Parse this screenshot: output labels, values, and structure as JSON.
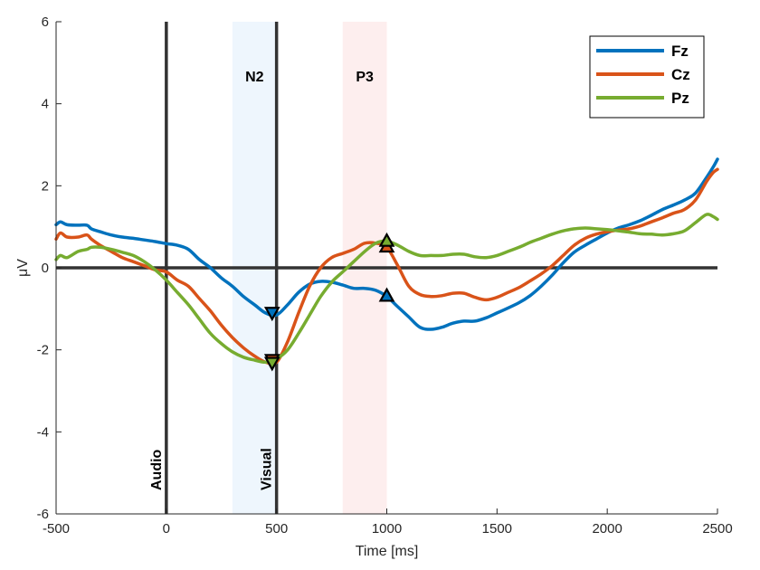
{
  "chart_data": {
    "type": "line",
    "xlabel": "Time [ms]",
    "ylabel": "μV",
    "xlim": [
      -500,
      2500
    ],
    "ylim": [
      -6,
      6
    ],
    "xticks": [
      -500,
      0,
      500,
      1000,
      1500,
      2000,
      2500
    ],
    "yticks": [
      -6,
      -4,
      -2,
      0,
      2,
      4,
      6
    ],
    "grid": false,
    "legend_position": "top-right",
    "shaded_regions": [
      {
        "label": "N2",
        "x_start": 300,
        "x_end": 500,
        "color": "#eef6fd"
      },
      {
        "label": "P3",
        "x_start": 800,
        "x_end": 1000,
        "color": "#fdeeee"
      }
    ],
    "event_lines": [
      {
        "label": "Audio",
        "x": 0
      },
      {
        "label": "Visual",
        "x": 500
      }
    ],
    "series": [
      {
        "name": "Fz",
        "color": "#0072bd",
        "x": [
          -500,
          -480,
          -450,
          -400,
          -360,
          -340,
          -300,
          -250,
          -200,
          -150,
          -100,
          -50,
          0,
          50,
          100,
          150,
          200,
          250,
          300,
          350,
          400,
          450,
          500,
          550,
          600,
          650,
          700,
          750,
          800,
          850,
          900,
          950,
          1000,
          1050,
          1100,
          1150,
          1200,
          1250,
          1300,
          1350,
          1400,
          1450,
          1500,
          1550,
          1600,
          1650,
          1700,
          1750,
          1800,
          1850,
          1900,
          1950,
          2000,
          2050,
          2100,
          2150,
          2200,
          2250,
          2300,
          2350,
          2400,
          2450,
          2480,
          2500
        ],
        "values": [
          1.05,
          1.12,
          1.05,
          1.04,
          1.04,
          0.95,
          0.88,
          0.8,
          0.75,
          0.72,
          0.68,
          0.64,
          0.59,
          0.55,
          0.45,
          0.2,
          0.0,
          -0.25,
          -0.45,
          -0.7,
          -0.9,
          -1.1,
          -1.15,
          -0.9,
          -0.6,
          -0.4,
          -0.33,
          -0.35,
          -0.42,
          -0.5,
          -0.5,
          -0.55,
          -0.7,
          -0.95,
          -1.2,
          -1.45,
          -1.5,
          -1.45,
          -1.35,
          -1.3,
          -1.3,
          -1.22,
          -1.1,
          -0.98,
          -0.85,
          -0.68,
          -0.45,
          -0.18,
          0.12,
          0.38,
          0.55,
          0.7,
          0.85,
          0.97,
          1.05,
          1.15,
          1.28,
          1.42,
          1.53,
          1.65,
          1.82,
          2.2,
          2.45,
          2.65
        ]
      },
      {
        "name": "Cz",
        "color": "#d95319",
        "x": [
          -500,
          -480,
          -450,
          -400,
          -360,
          -340,
          -300,
          -250,
          -200,
          -150,
          -100,
          -50,
          0,
          50,
          100,
          150,
          200,
          250,
          300,
          350,
          400,
          450,
          500,
          550,
          600,
          650,
          700,
          750,
          800,
          850,
          900,
          950,
          1000,
          1050,
          1100,
          1150,
          1200,
          1250,
          1300,
          1350,
          1400,
          1450,
          1500,
          1550,
          1600,
          1650,
          1700,
          1750,
          1800,
          1850,
          1900,
          1950,
          2000,
          2050,
          2100,
          2150,
          2200,
          2250,
          2300,
          2350,
          2400,
          2450,
          2480,
          2500
        ],
        "values": [
          0.7,
          0.85,
          0.75,
          0.75,
          0.8,
          0.7,
          0.55,
          0.4,
          0.25,
          0.15,
          0.05,
          -0.05,
          -0.1,
          -0.3,
          -0.45,
          -0.75,
          -1.05,
          -1.4,
          -1.7,
          -1.95,
          -2.15,
          -2.3,
          -2.3,
          -1.8,
          -1.1,
          -0.45,
          0.0,
          0.25,
          0.35,
          0.45,
          0.6,
          0.6,
          0.5,
          0.05,
          -0.45,
          -0.65,
          -0.7,
          -0.68,
          -0.62,
          -0.62,
          -0.72,
          -0.78,
          -0.72,
          -0.6,
          -0.48,
          -0.32,
          -0.15,
          0.05,
          0.3,
          0.55,
          0.72,
          0.82,
          0.88,
          0.92,
          0.95,
          1.02,
          1.12,
          1.22,
          1.33,
          1.42,
          1.65,
          2.1,
          2.32,
          2.4
        ]
      },
      {
        "name": "Pz",
        "color": "#77ac30",
        "x": [
          -500,
          -480,
          -450,
          -400,
          -360,
          -340,
          -300,
          -250,
          -200,
          -150,
          -100,
          -50,
          0,
          50,
          100,
          150,
          200,
          250,
          300,
          350,
          400,
          450,
          500,
          550,
          600,
          650,
          700,
          750,
          800,
          850,
          900,
          950,
          1000,
          1050,
          1100,
          1150,
          1200,
          1250,
          1300,
          1350,
          1400,
          1450,
          1500,
          1550,
          1600,
          1650,
          1700,
          1750,
          1800,
          1850,
          1900,
          1950,
          2000,
          2050,
          2100,
          2150,
          2200,
          2250,
          2300,
          2350,
          2400,
          2450,
          2480,
          2500
        ],
        "values": [
          0.2,
          0.3,
          0.25,
          0.4,
          0.45,
          0.5,
          0.5,
          0.45,
          0.38,
          0.3,
          0.15,
          -0.05,
          -0.3,
          -0.6,
          -0.9,
          -1.25,
          -1.6,
          -1.85,
          -2.05,
          -2.18,
          -2.25,
          -2.3,
          -2.22,
          -2.0,
          -1.6,
          -1.15,
          -0.7,
          -0.35,
          -0.1,
          0.15,
          0.4,
          0.6,
          0.65,
          0.55,
          0.4,
          0.3,
          0.3,
          0.3,
          0.33,
          0.33,
          0.27,
          0.25,
          0.3,
          0.4,
          0.5,
          0.62,
          0.72,
          0.82,
          0.9,
          0.95,
          0.97,
          0.95,
          0.93,
          0.9,
          0.87,
          0.83,
          0.82,
          0.8,
          0.83,
          0.9,
          1.1,
          1.3,
          1.25,
          1.18
        ]
      }
    ],
    "markers": [
      {
        "series": "Fz",
        "shape": "triangle-down",
        "x": 480,
        "y": -1.1
      },
      {
        "series": "Fz",
        "shape": "triangle-up",
        "x": 1000,
        "y": -0.68
      },
      {
        "series": "Cz",
        "shape": "triangle-down",
        "x": 480,
        "y": -2.25
      },
      {
        "series": "Cz",
        "shape": "triangle-up",
        "x": 1000,
        "y": 0.52
      },
      {
        "series": "Pz",
        "shape": "triangle-down",
        "x": 480,
        "y": -2.32
      },
      {
        "series": "Pz",
        "shape": "triangle-up",
        "x": 1000,
        "y": 0.66
      }
    ]
  }
}
